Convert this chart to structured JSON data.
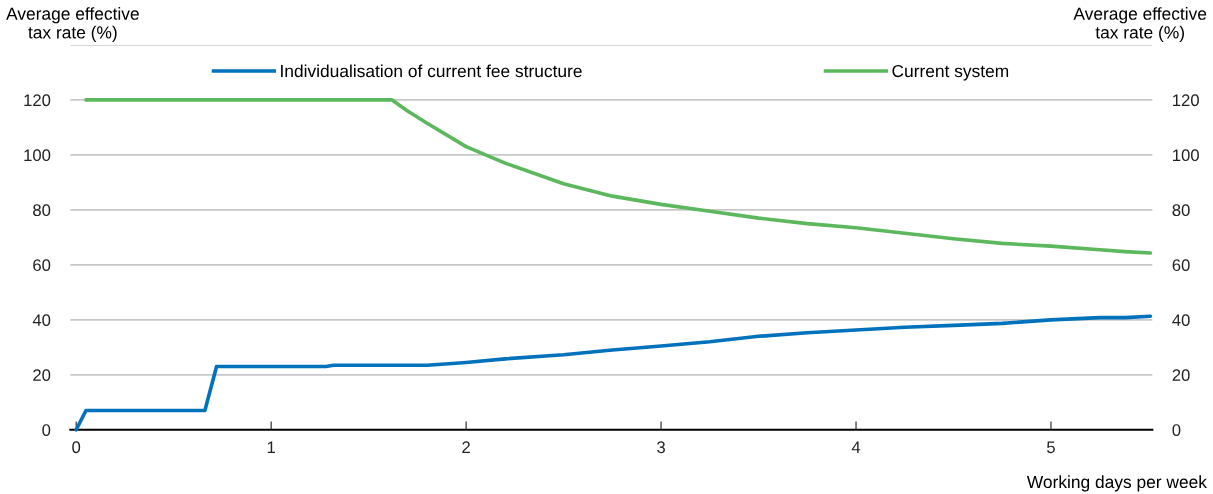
{
  "chart_data": {
    "type": "line",
    "ylabel": "Average effective\ntax rate (%)",
    "y2label": "Average effective\ntax rate (%)",
    "xlabel": "Working days per week",
    "xlim": [
      -0.03,
      5.52
    ],
    "xticks": [
      0,
      1,
      2,
      3,
      4,
      5
    ],
    "ylim": [
      0,
      140
    ],
    "yticks": [
      0,
      20,
      40,
      60,
      80,
      100,
      120,
      {
        "value": 140,
        "label": null
      }
    ],
    "y2lim": [
      0,
      140
    ],
    "y2ticks": [
      0,
      20,
      40,
      60,
      80,
      100,
      120
    ],
    "grid": "y",
    "legend": "top",
    "line_style": "solid",
    "marker": "none",
    "series": [
      {
        "name": "Individualisation of current fee structure",
        "color": "#0072bc",
        "x": [
          0,
          0.05,
          0.66,
          0.72,
          1.28,
          1.32,
          1.8,
          2,
          2.2,
          2.5,
          2.75,
          3,
          3.25,
          3.5,
          3.75,
          4,
          4.25,
          4.5,
          4.75,
          5,
          5.25,
          5.38,
          5.51
        ],
        "values": [
          0,
          7,
          7,
          23,
          23,
          23.5,
          23.5,
          24.5,
          25.8,
          27.3,
          29,
          30.5,
          32,
          34,
          35.3,
          36.3,
          37.3,
          38,
          38.7,
          40,
          40.8,
          40.8,
          41.3
        ]
      },
      {
        "name": "Current system",
        "color": "#5cb85c",
        "x": [
          0.05,
          1.62,
          1.7,
          1.8,
          2,
          2.2,
          2.5,
          2.75,
          3,
          3.25,
          3.5,
          3.75,
          4,
          4.25,
          4.5,
          4.75,
          5,
          5.25,
          5.38,
          5.51
        ],
        "values": [
          120,
          120,
          116,
          111.5,
          103,
          97,
          89.5,
          85,
          82,
          79.5,
          77,
          75,
          73.5,
          71.5,
          69.5,
          67.8,
          66.8,
          65.5,
          64.8,
          64.3
        ]
      }
    ]
  }
}
